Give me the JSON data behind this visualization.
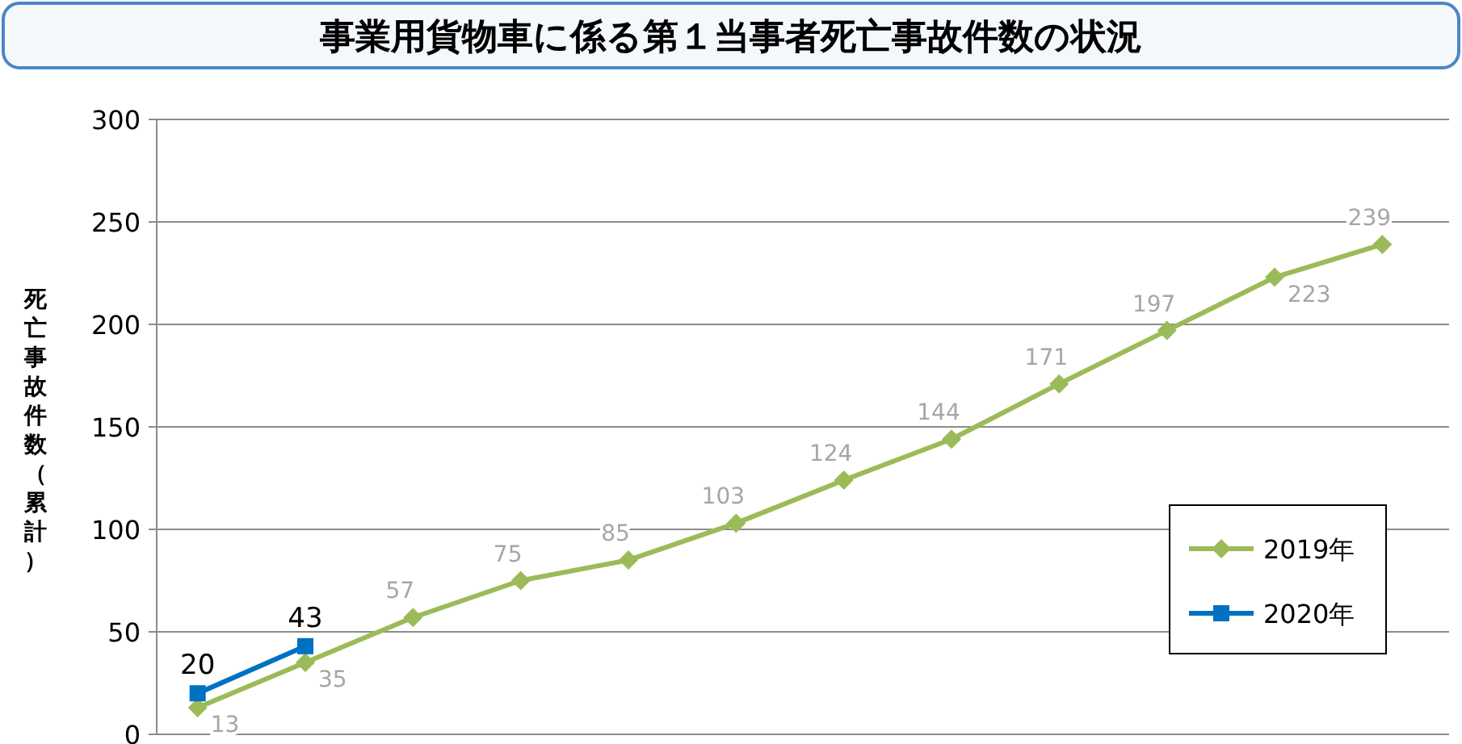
{
  "chart_data": {
    "type": "line",
    "title": "事業用貨物車に係る第１当事者死亡事故件数の状況",
    "ylabel": "死亡事故件数（累計）",
    "categories": [
      null,
      null,
      null,
      null,
      null,
      null,
      null,
      null,
      null,
      null,
      null,
      null
    ],
    "series": [
      {
        "name": "2019年",
        "color": "#9bbb59",
        "marker": "diamond",
        "values": [
          13,
          35,
          57,
          75,
          85,
          103,
          124,
          144,
          171,
          197,
          223,
          239
        ]
      },
      {
        "name": "2020年",
        "color": "#0070c0",
        "marker": "square",
        "values": [
          20,
          43,
          null,
          null,
          null,
          null,
          null,
          null,
          null,
          null,
          null,
          null
        ]
      }
    ],
    "ylim": [
      0,
      300
    ],
    "yticks": [
      0,
      50,
      100,
      150,
      200,
      250,
      300
    ],
    "grid": "y",
    "legend": "right",
    "data_labels": true,
    "line_style": "solid"
  }
}
